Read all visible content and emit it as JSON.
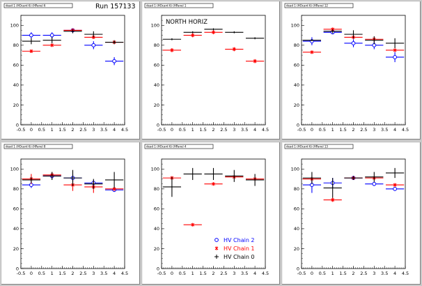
{
  "run_label": "Run 157133",
  "colors": {
    "background": "#c9c9c9",
    "pad": "#ffffff",
    "hv_chain_2": "#0000ff",
    "hv_chain_1": "#ff0000",
    "hv_chain_0": "#000000"
  },
  "legend": [
    {
      "name": "HV Chain 2",
      "marker": "open-circle",
      "color": "#0000ff"
    },
    {
      "name": "HV Chain 1",
      "marker": "star",
      "color": "#ff0000"
    },
    {
      "name": "HV Chain 0",
      "marker": "cross",
      "color": "#000000"
    }
  ],
  "chart_data": [
    {
      "type": "scatter",
      "title": "dead 1 (HOcard 6) (HPanel 6",
      "annotation": "",
      "xlim": [
        -0.5,
        4.5
      ],
      "ylim": [
        0,
        110
      ],
      "xticks": [
        "-0.5",
        "0",
        "0.5",
        "1",
        "1.5",
        "2",
        "2.5",
        "3",
        "3.5",
        "4",
        "4.5"
      ],
      "yticks": [
        "0",
        "20",
        "40",
        "60",
        "80",
        "100"
      ],
      "series": [
        {
          "name": "HV Chain 2",
          "x": [
            0,
            1,
            2,
            3,
            4
          ],
          "y": [
            90,
            90,
            95,
            80,
            64
          ],
          "yerr": [
            3,
            3,
            2,
            4,
            4
          ]
        },
        {
          "name": "HV Chain 1",
          "x": [
            0,
            1,
            2,
            3,
            4
          ],
          "y": [
            74,
            80,
            95,
            88,
            83
          ],
          "yerr": [
            1,
            1,
            1,
            1,
            1
          ]
        },
        {
          "name": "HV Chain 0",
          "x": [
            0,
            1,
            2,
            3,
            4
          ],
          "y": [
            84,
            85,
            94,
            91,
            83
          ],
          "yerr": [
            3,
            3,
            2,
            3,
            2
          ]
        }
      ]
    },
    {
      "type": "scatter",
      "title": "dead 1 (HOcard 6) (HPanel 1",
      "annotation": "NORTH HORIZ",
      "xlim": [
        -0.5,
        4.5
      ],
      "ylim": [
        0,
        110
      ],
      "xticks": [
        "-0.5",
        "0",
        "0.5",
        "1",
        "1.5",
        "2",
        "2.5",
        "3",
        "3.5",
        "4",
        "4.5"
      ],
      "yticks": [
        "0",
        "20",
        "40",
        "60",
        "80",
        "100"
      ],
      "series": [
        {
          "name": "HV Chain 1",
          "x": [
            0,
            1,
            2,
            3,
            4
          ],
          "y": [
            75,
            90,
            93,
            76,
            64
          ],
          "yerr": [
            2,
            2,
            2,
            2,
            2
          ]
        },
        {
          "name": "HV Chain 0",
          "x": [
            0,
            1,
            2,
            3,
            4
          ],
          "y": [
            86,
            93,
            96,
            93,
            87
          ],
          "yerr": [
            1,
            1,
            1,
            1,
            1
          ]
        }
      ]
    },
    {
      "type": "scatter",
      "title": "dead 1 (HOcard 6) (HPanel 12",
      "annotation": "",
      "xlim": [
        -0.5,
        4.5
      ],
      "ylim": [
        0,
        110
      ],
      "xticks": [
        "-0.5",
        "0",
        "0.5",
        "1",
        "1.5",
        "2",
        "2.5",
        "3",
        "3.5",
        "4",
        "4.5"
      ],
      "yticks": [
        "0",
        "20",
        "40",
        "60",
        "80",
        "100"
      ],
      "series": [
        {
          "name": "HV Chain 2",
          "x": [
            0,
            1,
            2,
            3,
            4
          ],
          "y": [
            84,
            93,
            82,
            80,
            68
          ],
          "yerr": [
            4,
            2,
            4,
            4,
            5
          ]
        },
        {
          "name": "HV Chain 1",
          "x": [
            0,
            1,
            2,
            3,
            4
          ],
          "y": [
            73,
            96,
            88,
            86,
            75
          ],
          "yerr": [
            1,
            1,
            1,
            1,
            1
          ]
        },
        {
          "name": "HV Chain 0",
          "x": [
            0,
            1,
            2,
            3,
            4
          ],
          "y": [
            85,
            94,
            91,
            85,
            82
          ],
          "yerr": [
            1,
            2,
            4,
            4,
            5
          ]
        }
      ]
    },
    {
      "type": "scatter",
      "title": "dead 1 (HOcard 6) (HPanel 8",
      "annotation": "",
      "xlim": [
        -0.5,
        4.5
      ],
      "ylim": [
        0,
        110
      ],
      "xticks": [
        "-0.5",
        "0",
        "0.5",
        "1",
        "1.5",
        "2",
        "2.5",
        "3",
        "3.5",
        "4",
        "4.5"
      ],
      "yticks": [
        "0",
        "20",
        "40",
        "60",
        "80",
        "100"
      ],
      "series": [
        {
          "name": "HV Chain 2",
          "x": [
            0,
            1,
            2,
            3,
            4
          ],
          "y": [
            84,
            93,
            91,
            86,
            79
          ],
          "yerr": [
            3,
            3,
            4,
            3,
            2
          ]
        },
        {
          "name": "HV Chain 1",
          "x": [
            0,
            1,
            2,
            3,
            4
          ],
          "y": [
            90,
            94,
            84,
            82,
            80
          ],
          "yerr": [
            5,
            3,
            6,
            6,
            2
          ]
        },
        {
          "name": "HV Chain 0",
          "x": [
            0,
            1,
            2,
            3,
            4
          ],
          "y": [
            89,
            93,
            91,
            85,
            89
          ],
          "yerr": [
            3,
            4,
            8,
            5,
            8
          ]
        }
      ]
    },
    {
      "type": "scatter",
      "title": "dead 1 (HOcard 6) (HPanel 4",
      "annotation": "",
      "xlim": [
        -0.5,
        4.5
      ],
      "ylim": [
        0,
        110
      ],
      "xticks": [
        "-0.5",
        "0",
        "0.5",
        "1",
        "1.5",
        "2",
        "2.5",
        "3",
        "3.5",
        "4",
        "4.5"
      ],
      "yticks": [
        "0",
        "20",
        "40",
        "60",
        "80",
        "100"
      ],
      "series": [
        {
          "name": "HV Chain 1",
          "x": [
            0,
            1,
            2,
            3,
            4
          ],
          "y": [
            91,
            44,
            85,
            92,
            90
          ],
          "yerr": [
            1,
            1,
            1,
            1,
            1
          ]
        },
        {
          "name": "HV Chain 0",
          "x": [
            0,
            1,
            2,
            3,
            4
          ],
          "y": [
            82,
            95,
            95,
            93,
            89
          ],
          "yerr": [
            10,
            6,
            6,
            6,
            6
          ]
        }
      ]
    },
    {
      "type": "scatter",
      "title": "dead 1 (HOcard 6) (HPanel 13",
      "annotation": "",
      "xlim": [
        -0.5,
        4.5
      ],
      "ylim": [
        0,
        110
      ],
      "xticks": [
        "-0.5",
        "0",
        "0.5",
        "1",
        "1.5",
        "2",
        "2.5",
        "3",
        "3.5",
        "4",
        "4.5"
      ],
      "yticks": [
        "0",
        "20",
        "40",
        "60",
        "80",
        "100"
      ],
      "series": [
        {
          "name": "HV Chain 2",
          "x": [
            0,
            1,
            2,
            3,
            4
          ],
          "y": [
            84,
            86,
            91,
            85,
            80
          ],
          "yerr": [
            8,
            5,
            2,
            2,
            2
          ]
        },
        {
          "name": "HV Chain 1",
          "x": [
            0,
            1,
            2,
            3,
            4
          ],
          "y": [
            90,
            69,
            91,
            91,
            84
          ],
          "yerr": [
            2,
            2,
            1,
            1,
            1
          ]
        },
        {
          "name": "HV Chain 0",
          "x": [
            0,
            1,
            2,
            3,
            4
          ],
          "y": [
            91,
            81,
            91,
            92,
            96
          ],
          "yerr": [
            6,
            10,
            2,
            5,
            5
          ]
        }
      ]
    }
  ]
}
